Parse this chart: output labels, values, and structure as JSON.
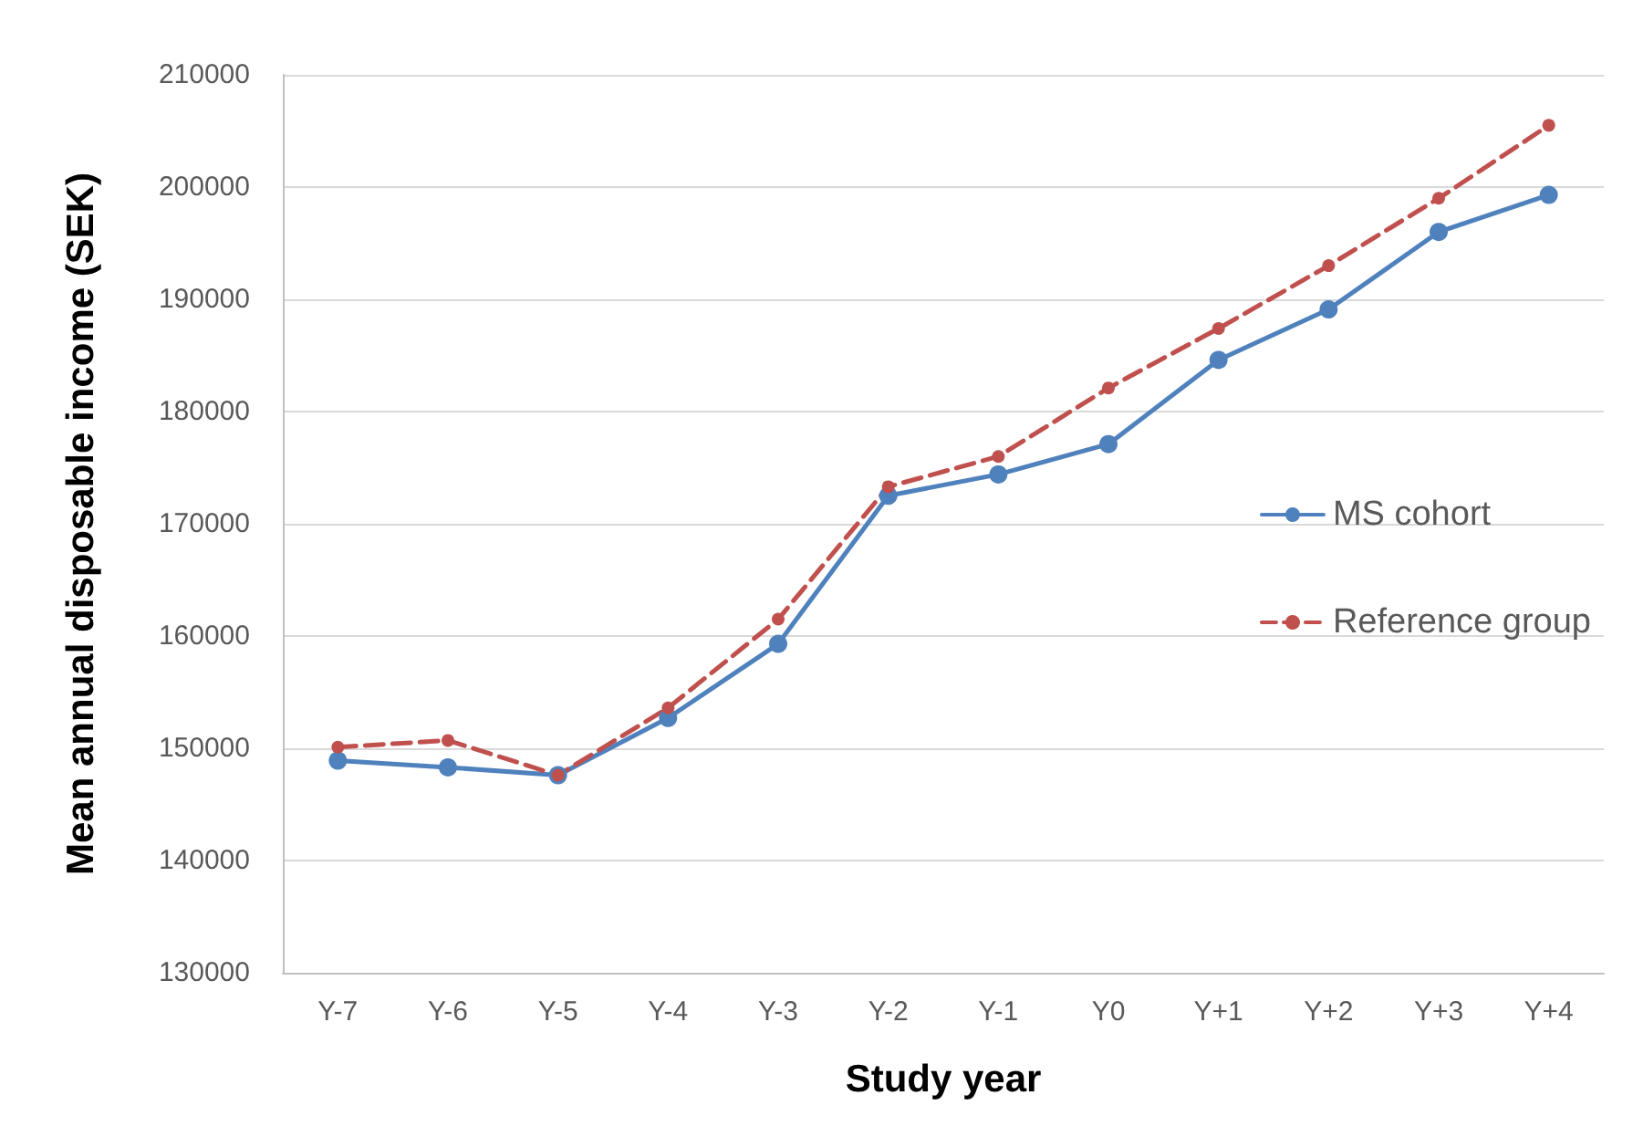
{
  "chart_data": {
    "type": "line",
    "xlabel": "Study year",
    "ylabel": "Mean annual disposable income (SEK)",
    "categories": [
      "Y-7",
      "Y-6",
      "Y-5",
      "Y-4",
      "Y-3",
      "Y-2",
      "Y-1",
      "Y0",
      "Y+1",
      "Y+2",
      "Y+3",
      "Y+4"
    ],
    "series": [
      {
        "name": "MS cohort",
        "color": "#4f81bd",
        "line_style": "solid",
        "values": [
          148900,
          148300,
          147600,
          152700,
          159300,
          172500,
          174400,
          177100,
          184600,
          189100,
          196000,
          199300
        ]
      },
      {
        "name": "Reference group",
        "color": "#c0504d",
        "line_style": "dashed",
        "values": [
          150100,
          150700,
          147600,
          153600,
          161500,
          173300,
          176000,
          182100,
          187400,
          193000,
          199000,
          205500
        ]
      }
    ],
    "ylim": [
      130000,
      210000
    ],
    "yticks": [
      130000,
      140000,
      150000,
      160000,
      170000,
      180000,
      190000,
      200000,
      210000
    ],
    "grid": "y",
    "legend": "right",
    "marker": "circle"
  }
}
